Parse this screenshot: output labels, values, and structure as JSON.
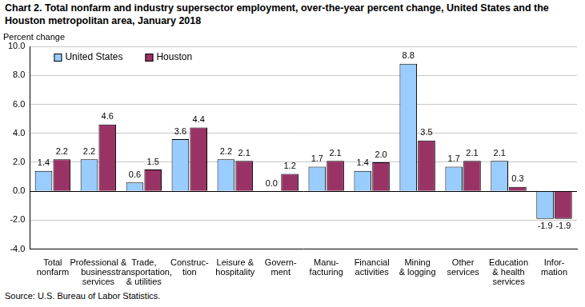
{
  "chart_data": {
    "type": "bar",
    "title": "Chart 2. Total nonfarm and industry supersector employment, over-the-year percent change, United States and the Houston metropolitan area, January 2018",
    "y_label": "Percent change",
    "source": "Source: U.S. Bureau of Labor Statistics.",
    "categories": [
      [
        "Total",
        "nonfarm"
      ],
      [
        "Professional &",
        "business",
        "services"
      ],
      [
        "Trade,",
        "transportation,",
        "& utilities"
      ],
      [
        "Construc-",
        "tion"
      ],
      [
        "Leisure &",
        "hospitality"
      ],
      [
        "Govern-",
        "ment"
      ],
      [
        "Manu-",
        "facturing"
      ],
      [
        "Financial",
        "activities"
      ],
      [
        "Mining",
        "& logging"
      ],
      [
        "Other",
        "services"
      ],
      [
        "Education",
        "& health",
        "services"
      ],
      [
        "Infor-",
        "mation"
      ]
    ],
    "series": [
      {
        "name": "United States",
        "color": "#99ccff",
        "values": [
          1.4,
          2.2,
          0.6,
          3.6,
          2.2,
          0.0,
          1.7,
          1.4,
          8.8,
          1.7,
          2.1,
          -1.9
        ],
        "value_labels": [
          "1.4",
          "2.2",
          "0.6",
          "3.6",
          "2.2",
          "0.0",
          "1.7",
          "1.4",
          "8.8",
          "1.7",
          "2.1",
          "-1.9"
        ]
      },
      {
        "name": "Houston",
        "color": "#993366",
        "values": [
          2.2,
          4.6,
          1.5,
          4.4,
          2.1,
          1.2,
          2.1,
          2.0,
          3.5,
          2.1,
          0.3,
          -1.9
        ],
        "value_labels": [
          "2.2",
          "4.6",
          "1.5",
          "4.4",
          "2.1",
          "1.2",
          "2.1",
          "2.0",
          "3.5",
          "2.1",
          "0.3",
          "-1.9"
        ]
      }
    ],
    "ylim": [
      -4,
      10
    ],
    "yticks": [
      {
        "value": -4,
        "label": "-4.0"
      },
      {
        "value": -2,
        "label": "-2.0"
      },
      {
        "value": 0,
        "label": "0.0"
      },
      {
        "value": 2,
        "label": "2.0"
      },
      {
        "value": 4,
        "label": "4.0"
      },
      {
        "value": 6,
        "label": "6.0"
      },
      {
        "value": 8,
        "label": "8.0"
      },
      {
        "value": 10,
        "label": "10.0"
      }
    ],
    "grid": true,
    "legend": "upper left",
    "data_labels": true
  }
}
